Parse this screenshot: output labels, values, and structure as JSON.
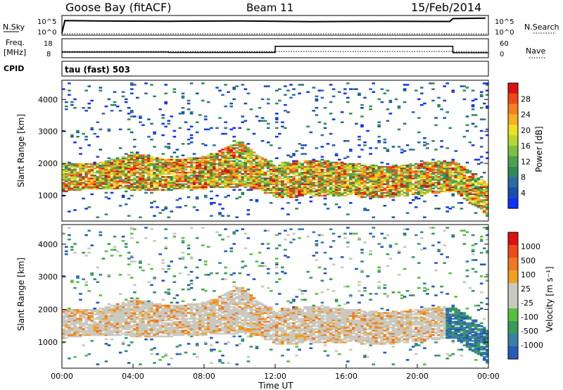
{
  "header": {
    "station": "Goose Bay (fitACF)",
    "beam": "Beam 11",
    "date": "15/Feb/2014"
  },
  "colors": {
    "power_scale": [
      "#1030ff",
      "#1a4fb0",
      "#2f6aa5",
      "#2f8a55",
      "#4fa04f",
      "#7cc040",
      "#b8d830",
      "#f0e020",
      "#f8b020",
      "#f58020",
      "#f04818",
      "#e01010"
    ],
    "velocity_scale": [
      "#2858b8",
      "#3a7fa8",
      "#3a9a5a",
      "#58c040",
      "#c9c9c0",
      "#c9c9c0",
      "#f0a020",
      "#f07820",
      "#f04818",
      "#e01010"
    ]
  },
  "chart_data": [
    {
      "type": "line",
      "title": "",
      "left_label": "N.Sky",
      "right_label": "N.Search",
      "y_ticks": [
        "10^5",
        "10^0"
      ],
      "right_ticks": [
        "10^5",
        "10^0"
      ],
      "series": [
        {
          "name": "N.Sky",
          "style": "solid",
          "x": [
            "00:00",
            "00:10",
            "02:00",
            "06:00",
            "10:00",
            "14:00",
            "18:00",
            "21:50",
            "22:00",
            "23:50"
          ],
          "y_norm": [
            0.05,
            0.78,
            0.76,
            0.74,
            0.76,
            0.72,
            0.74,
            0.73,
            0.9,
            0.93
          ]
        },
        {
          "name": "N.Search",
          "style": "dotted",
          "x": [
            "00:00",
            "24:00"
          ],
          "y_norm": [
            0.0,
            0.0
          ]
        }
      ]
    },
    {
      "type": "line",
      "left_label_top": "Freq.",
      "left_label_bottom": "[MHz]",
      "right_label": "Nave",
      "y_ticks": [
        "18",
        "8"
      ],
      "right_ticks": [
        "60",
        "0"
      ],
      "series": [
        {
          "name": "Freq.",
          "style": "solid",
          "x": [
            "00:00",
            "06:00",
            "06:00",
            "12:00",
            "12:00",
            "22:00",
            "22:00",
            "24:00"
          ],
          "y": [
            10.6,
            10.6,
            10.4,
            10.4,
            14.2,
            14.2,
            10.2,
            10.2
          ]
        },
        {
          "name": "Nave",
          "style": "dotted",
          "x": [
            "00:00",
            "12:00",
            "12:00",
            "22:00",
            "22:00",
            "24:00"
          ],
          "y": [
            18,
            18,
            18,
            18,
            18,
            18
          ]
        }
      ]
    },
    {
      "type": "heatmap",
      "quantity": "Power",
      "cpid_label": "CPID",
      "program": "tau (fast) 503",
      "xlabel": "",
      "ylabel": "Slant Range [km]",
      "y_ticks": [
        1000,
        2000,
        3000,
        4000
      ],
      "ylim": [
        200,
        4600
      ],
      "colorbar_label": "Power [dB]",
      "colorbar_ticks": [
        "28",
        "24",
        "20",
        "16",
        "12",
        "8",
        "4"
      ],
      "echo_bands": [
        {
          "x": [
            "00:00",
            "02:00",
            "04:00",
            "06:00",
            "08:00",
            "10:00",
            "11:00",
            "12:00",
            "14:00",
            "16:00",
            "18:00",
            "20:00",
            "22:00",
            "23:00",
            "24:00"
          ],
          "lower": [
            1100,
            1200,
            1150,
            1150,
            1200,
            1250,
            1150,
            900,
            950,
            950,
            900,
            1000,
            1100,
            700,
            300
          ],
          "upper": [
            2000,
            2000,
            2300,
            2100,
            2200,
            2700,
            2200,
            2000,
            2100,
            2000,
            1900,
            2000,
            2100,
            1700,
            1300
          ],
          "intensity": 0.7
        }
      ]
    },
    {
      "type": "heatmap",
      "quantity": "Velocity",
      "xlabel": "Time UT",
      "ylabel": "Slant Range [km]",
      "x_ticks": [
        "00:00",
        "04:00",
        "08:00",
        "12:00",
        "16:00",
        "20:00",
        "00:00"
      ],
      "y_ticks": [
        1000,
        2000,
        3000,
        4000
      ],
      "ylim": [
        200,
        4600
      ],
      "colorbar_label": "Velocity [m s⁻¹]",
      "colorbar_ticks": [
        "1000",
        "500",
        "100",
        "25",
        "-25",
        "-100",
        "-500",
        "-1000"
      ]
    }
  ]
}
